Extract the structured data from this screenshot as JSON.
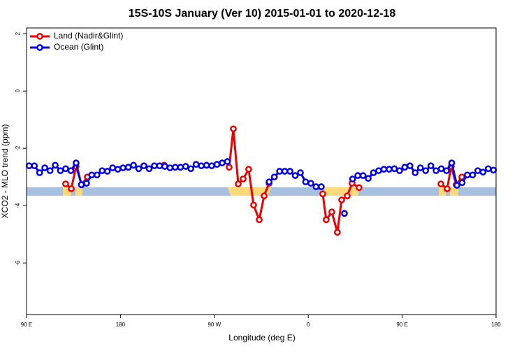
{
  "chart_data": {
    "type": "line",
    "title": "15S-10S January (Ver 10)   2015-01-01 to 2020-12-18",
    "x_label": "Longitude (deg E)",
    "y_label": "XCO2 - MLO trend (ppm)",
    "xlim": [
      90,
      540
    ],
    "ylim": [
      -7.8,
      2.2
    ],
    "xticks": [
      {
        "value": 90,
        "label": "90 E"
      },
      180,
      {
        "value": 270,
        "label": "90 W"
      },
      {
        "value": 360,
        "label": "0"
      },
      {
        "value": 450,
        "label": "90 E"
      },
      {
        "value": 540,
        "label": "180"
      }
    ],
    "yticks": [
      2,
      0,
      -2,
      -4,
      -6
    ],
    "legend": "top-left",
    "series": [
      {
        "name": "Land (Nadir&Glint)",
        "color": "#ee0000",
        "x": [
          127.5,
          132.9,
          137.5,
          142.9,
          148.3,
          null,
          221.9,
          null,
          284.2,
          288.2,
          292.9,
          297.6,
          302.9,
          307.6,
          313,
          317.7,
          322.4,
          null,
          373.9,
          377.2,
          382.6,
          387.9,
          392,
          397.4,
          402,
          408.7,
          null,
          487.1,
          493.1,
          497.1,
          501.8,
          507.2
        ],
        "values": [
          -3.24,
          -3.41,
          -2.63,
          -3.27,
          -3.0,
          null,
          -2.59,
          null,
          -2.66,
          -1.32,
          -3.24,
          -3.07,
          -2.73,
          -3.98,
          -4.49,
          -3.66,
          -3.22,
          null,
          -3.59,
          -4.49,
          -4.22,
          -4.93,
          -3.8,
          -3.66,
          -3.22,
          -3.37,
          null,
          -3.24,
          -3.41,
          -2.63,
          -3.27,
          -3.0
        ]
      },
      {
        "name": "Ocean (Glint)",
        "color": "#0000ee",
        "x": [
          92.5,
          97.5,
          102.5,
          107.5,
          112.5,
          117.5,
          122.5,
          127.5,
          132.5,
          137.5,
          142.5,
          147.5,
          152.5,
          157.5,
          162.5,
          167.5,
          172.5,
          177.5,
          182.5,
          187.5,
          192.5,
          197.5,
          202.5,
          207.5,
          212.5,
          217.5,
          222.5,
          227.5,
          232.5,
          237.5,
          242.5,
          247.5,
          252.5,
          257.5,
          262.5,
          267.5,
          272.5,
          277.5,
          282.5,
          null,
          322.5,
          327.5,
          332.5,
          337.5,
          342.5,
          347.5,
          352.5,
          357.5,
          362.5,
          367.5,
          372.5,
          null,
          394.7,
          null,
          402.5,
          407.5,
          412.5,
          417.5,
          422.5,
          427.5,
          432.5,
          437.5,
          442.5,
          447.5,
          452.5,
          457.5,
          462.5,
          467.5,
          472.5,
          477.5,
          482.5,
          487.5,
          492.5,
          497.5,
          502.5,
          507.5,
          512.5,
          517.5,
          522.5,
          527.5,
          532.5,
          537.5
        ],
        "values": [
          -2.61,
          -2.61,
          -2.85,
          -2.68,
          -2.78,
          -2.59,
          -2.78,
          -2.71,
          -2.78,
          -2.51,
          -3.27,
          -3.22,
          -2.93,
          -2.93,
          -2.78,
          -2.8,
          -2.68,
          -2.73,
          -2.68,
          -2.66,
          -2.59,
          -2.71,
          -2.61,
          -2.71,
          -2.61,
          -2.61,
          -2.63,
          -2.68,
          -2.66,
          -2.66,
          -2.63,
          -2.71,
          -2.56,
          -2.61,
          -2.59,
          -2.61,
          -2.56,
          -2.51,
          -2.46,
          null,
          -3.17,
          -3.0,
          -2.8,
          -2.8,
          -2.8,
          -2.95,
          -2.85,
          -3.17,
          -3.22,
          -3.34,
          -3.34,
          null,
          -4.27,
          null,
          -3.07,
          -2.95,
          -2.95,
          -3.05,
          -2.85,
          -2.78,
          -2.73,
          -2.73,
          -2.71,
          -2.78,
          -2.66,
          -2.61,
          -2.85,
          -2.68,
          -2.78,
          -2.61,
          -2.78,
          -2.71,
          -2.78,
          -2.51,
          -3.29,
          -3.2,
          -2.93,
          -2.93,
          -2.78,
          -2.83,
          -2.71,
          -2.76
        ]
      }
    ]
  }
}
